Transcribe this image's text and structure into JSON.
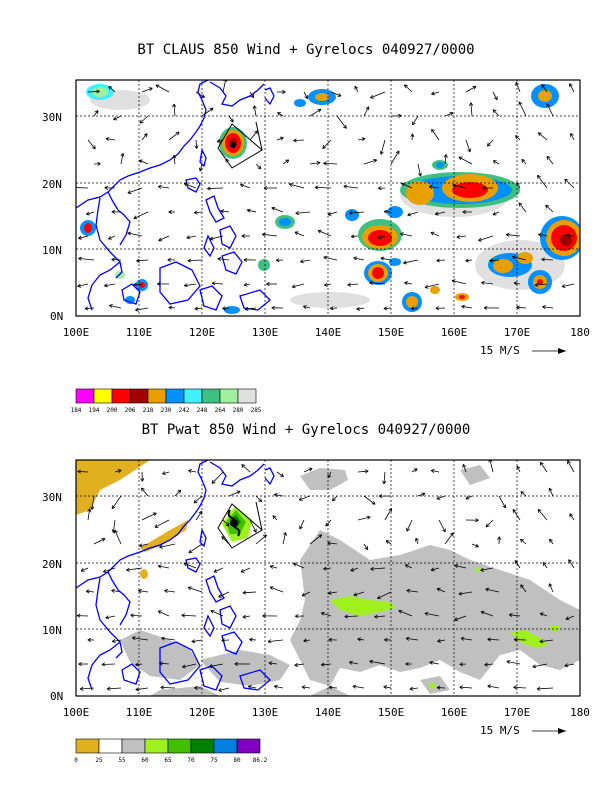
{
  "panels": [
    {
      "title": "BT CLAUS 850 Wind + Gyrelocs 040927/0000",
      "y_labels": [
        "30N",
        "20N",
        "10N",
        "0N"
      ],
      "x_labels": [
        "100E",
        "110E",
        "120E",
        "130E",
        "140E",
        "150E",
        "160E",
        "170E",
        "180"
      ],
      "scale": "15 M/S",
      "colorbar": {
        "colors": [
          "#ff00ff",
          "#ffff00",
          "#ff0000",
          "#a00000",
          "#e8a000",
          "#0090ff",
          "#40f0ff",
          "#40c080",
          "#a0f0a0",
          "#e0e0e0"
        ],
        "labels": [
          "184",
          "194",
          "200",
          "206",
          "218",
          "230",
          "242",
          "248",
          "264",
          "280",
          "285"
        ]
      }
    },
    {
      "title": "BT Pwat 850 Wind + Gyrelocs 040927/0000",
      "y_labels": [
        "30N",
        "20N",
        "10N",
        "0N"
      ],
      "x_labels": [
        "100E",
        "110E",
        "120E",
        "130E",
        "140E",
        "150E",
        "160E",
        "170E",
        "180"
      ],
      "scale": "15 M/S",
      "colorbar": {
        "colors": [
          "#e0b020",
          "#ffffff",
          "#c0c0c0",
          "#a0f020",
          "#40c000",
          "#008000",
          "#0080e0",
          "#8000c0"
        ],
        "labels": [
          "0",
          "25",
          "55",
          "60",
          "65",
          "70",
          "75",
          "80",
          "86.2"
        ]
      }
    }
  ]
}
